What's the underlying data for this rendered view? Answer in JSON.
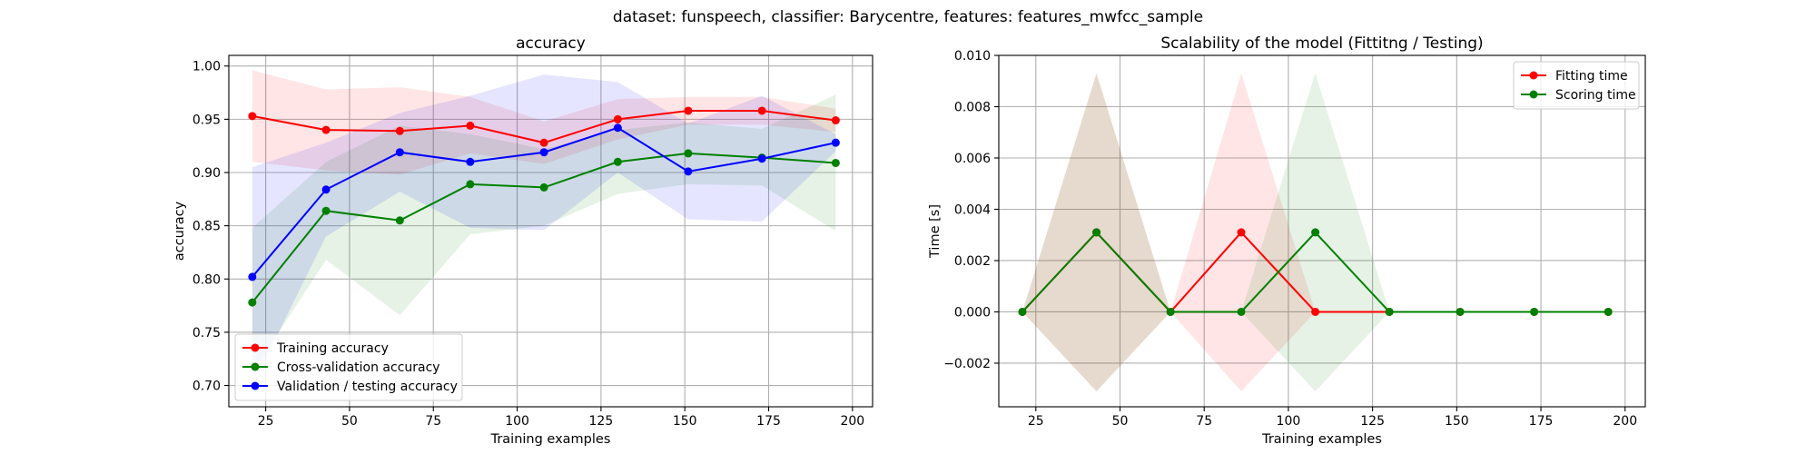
{
  "suptitle": "dataset: funspeech, classifier: Barycentre, features: features_mwfcc_sample",
  "colors": {
    "red": "#ff0000",
    "green": "#008000",
    "blue": "#0000ff"
  },
  "chart_data": [
    {
      "type": "line",
      "title": "accuracy",
      "xlabel": "Training examples",
      "ylabel": "accuracy",
      "xlim": [
        14,
        206
      ],
      "ylim": [
        0.68,
        1.01
      ],
      "xticks": [
        25,
        50,
        75,
        100,
        125,
        150,
        175,
        200
      ],
      "yticks": [
        0.7,
        0.75,
        0.8,
        0.85,
        0.9,
        0.95,
        1.0
      ],
      "ytick_decimals": 2,
      "grid": true,
      "legend": "lower-left",
      "x": [
        21,
        43,
        65,
        86,
        108,
        130,
        151,
        173,
        195
      ],
      "series": [
        {
          "name": "Training accuracy",
          "color": "red",
          "values": [
            0.953,
            0.94,
            0.939,
            0.944,
            0.928,
            0.95,
            0.958,
            0.958,
            0.949
          ],
          "band_low": [
            0.91,
            0.902,
            0.898,
            0.918,
            0.908,
            0.931,
            0.945,
            0.945,
            0.938
          ],
          "band_high": [
            0.996,
            0.978,
            0.98,
            0.971,
            0.948,
            0.969,
            0.971,
            0.971,
            0.96
          ]
        },
        {
          "name": "Cross-validation accuracy",
          "color": "green",
          "values": [
            0.778,
            0.864,
            0.855,
            0.889,
            0.886,
            0.91,
            0.918,
            0.914,
            0.909
          ],
          "band_low": [
            0.712,
            0.818,
            0.766,
            0.842,
            0.85,
            0.88,
            0.889,
            0.888,
            0.845
          ],
          "band_high": [
            0.848,
            0.91,
            0.944,
            0.936,
            0.922,
            0.94,
            0.947,
            0.941,
            0.973
          ]
        },
        {
          "name": "Validation / testing accuracy",
          "color": "blue",
          "values": [
            0.802,
            0.884,
            0.919,
            0.91,
            0.919,
            0.942,
            0.901,
            0.913,
            0.928
          ],
          "band_low": [
            0.7,
            0.84,
            0.882,
            0.848,
            0.846,
            0.9,
            0.856,
            0.854,
            0.92
          ],
          "band_high": [
            0.905,
            0.928,
            0.956,
            0.972,
            0.992,
            0.985,
            0.946,
            0.972,
            0.936
          ]
        }
      ]
    },
    {
      "type": "line",
      "title": "Scalability of the model (Fittitng / Testing)",
      "xlabel": "Training examples",
      "ylabel": "Time [s]",
      "xlim": [
        14,
        206
      ],
      "ylim": [
        -0.0037,
        0.01
      ],
      "xticks": [
        25,
        50,
        75,
        100,
        125,
        150,
        175,
        200
      ],
      "yticks": [
        -0.002,
        0.0,
        0.002,
        0.004,
        0.006,
        0.008,
        0.01
      ],
      "ytick_decimals": 3,
      "grid": true,
      "legend": "top-right",
      "x": [
        21,
        43,
        65,
        86,
        108,
        130,
        151,
        173,
        195
      ],
      "series": [
        {
          "name": "Fitting time",
          "color": "red",
          "values": [
            0,
            0.0031,
            0,
            0.0031,
            0,
            0,
            0,
            0,
            0
          ],
          "band_low": [
            0,
            -0.0031,
            0,
            -0.0031,
            0,
            0,
            0,
            0,
            0
          ],
          "band_high": [
            0,
            0.0093,
            0,
            0.0093,
            0,
            0,
            0,
            0,
            0
          ]
        },
        {
          "name": "Scoring time",
          "color": "green",
          "values": [
            0,
            0.0031,
            0,
            0,
            0.0031,
            0,
            0,
            0,
            0
          ],
          "band_low": [
            0,
            -0.0031,
            0,
            0,
            -0.0031,
            0,
            0,
            0,
            0
          ],
          "band_high": [
            0,
            0.0093,
            0,
            0,
            0.0093,
            0,
            0,
            0,
            0
          ]
        }
      ]
    }
  ]
}
